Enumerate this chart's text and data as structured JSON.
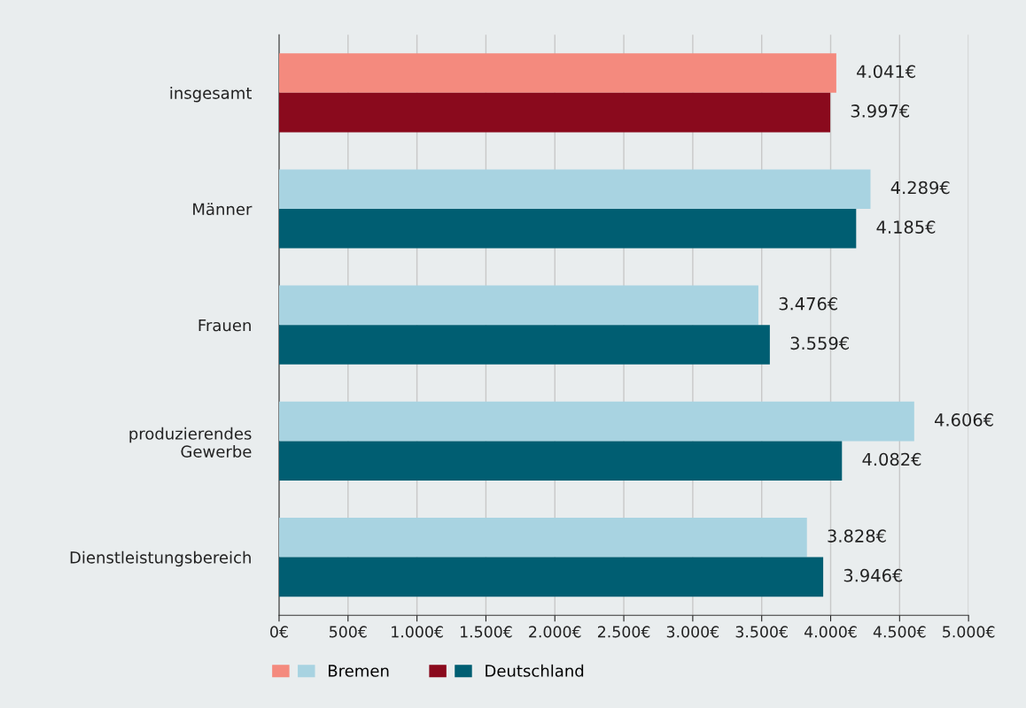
{
  "chart_data": {
    "type": "bar",
    "orientation": "horizontal",
    "categories": [
      "insgesamt",
      "Männer",
      "Frauen",
      "produzierendes\nGewerbe",
      "Dienstleistungsbereich"
    ],
    "series": [
      {
        "name": "Bremen",
        "colors": [
          "#f48a7e",
          "#a8d3e1",
          "#a8d3e1",
          "#a8d3e1",
          "#a8d3e1"
        ],
        "values": [
          4041,
          4289,
          3476,
          4606,
          3828
        ],
        "value_labels": [
          "4.041€",
          "4.289€",
          "3.476€",
          "4.606€",
          "3.828€"
        ]
      },
      {
        "name": "Deutschland",
        "colors": [
          "#8a0a1d",
          "#005e72",
          "#005e72",
          "#005e72",
          "#005e72"
        ],
        "values": [
          3997,
          4185,
          3559,
          4082,
          3946
        ],
        "value_labels": [
          "3.997€",
          "4.185€",
          "3.559€",
          "4.082€",
          "3.946€"
        ]
      }
    ],
    "xlim": [
      0,
      5000
    ],
    "xticks": [
      {
        "value": 0,
        "label": "0€"
      },
      {
        "value": 500,
        "label": "500€"
      },
      {
        "value": 1000,
        "label": "1.000€"
      },
      {
        "value": 1500,
        "label": "1.500€"
      },
      {
        "value": 2000,
        "label": "2.000€"
      },
      {
        "value": 2500,
        "label": "2.500€"
      },
      {
        "value": 3000,
        "label": "3.000€"
      },
      {
        "value": 3500,
        "label": "3.500€"
      },
      {
        "value": 4000,
        "label": "4.000€"
      },
      {
        "value": 4500,
        "label": "4.500€"
      },
      {
        "value": 5000,
        "label": "5.000€"
      }
    ],
    "grid": "x",
    "legend": "bottom left"
  }
}
